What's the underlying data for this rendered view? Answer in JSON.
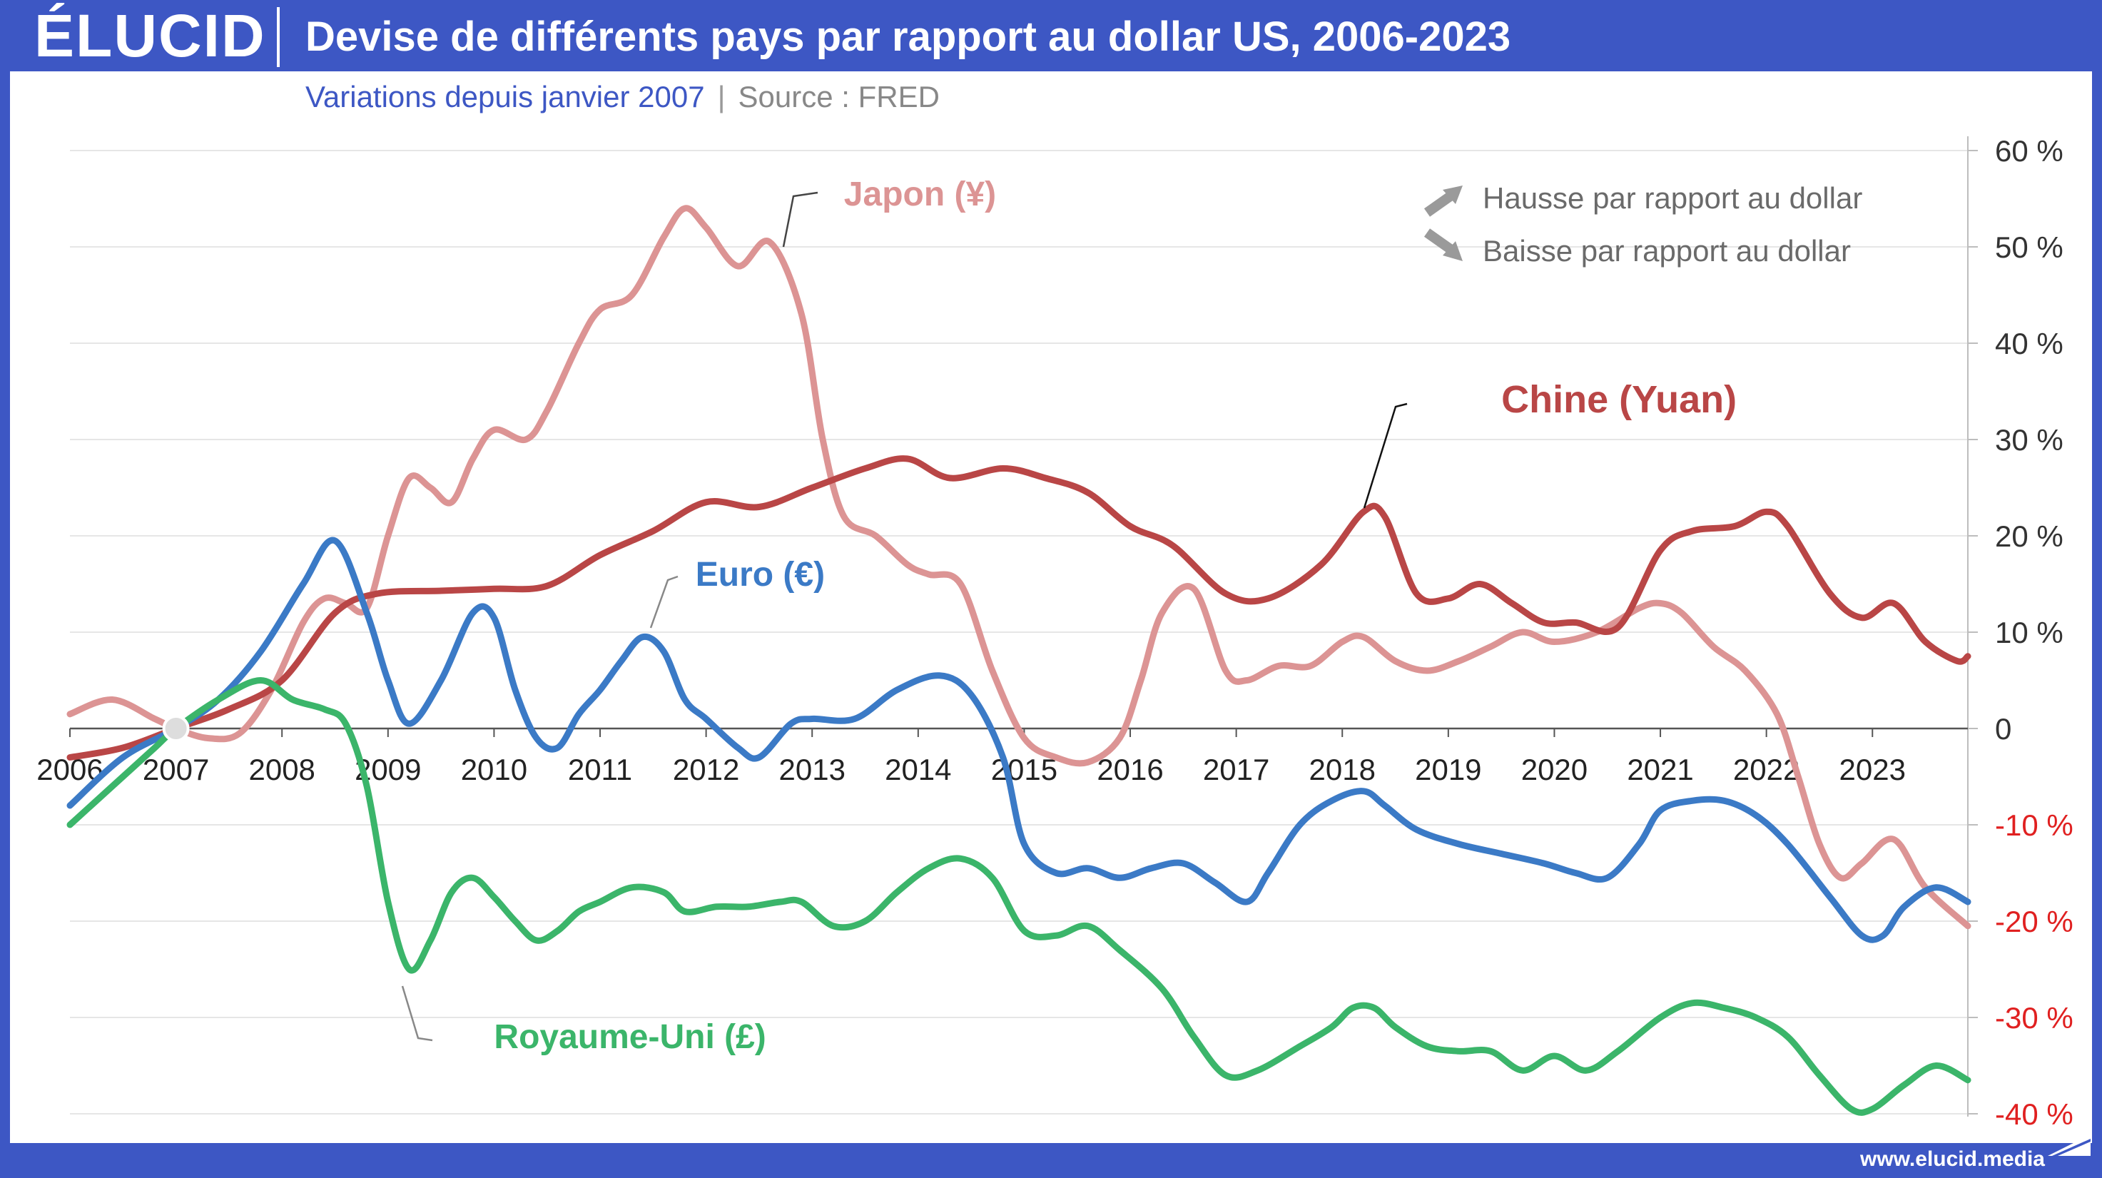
{
  "brand": {
    "logo": "ÉLUCID",
    "url": "www.elucid.media"
  },
  "header": {
    "title": "Devise de différents pays par rapport au dollar US, 2006-2023"
  },
  "subtitle": {
    "main": "Variations depuis janvier 2007",
    "separator": "|",
    "source": "Source : FRED"
  },
  "legend": {
    "up": "Hausse par rapport au dollar",
    "down": "Baisse par rapport au dollar"
  },
  "colors": {
    "brand": "#3d57c4",
    "japon": "#dc9494",
    "chine": "#b94646",
    "euro": "#3b7ac6",
    "uk": "#3bb56a",
    "negative_tick": "#e02020"
  },
  "chart_data": {
    "type": "line",
    "title": "Devise de différents pays par rapport au dollar US, 2006-2023",
    "xlabel": "",
    "ylabel": "",
    "x_ticks": [
      "2006",
      "2007",
      "2008",
      "2009",
      "2010",
      "2011",
      "2012",
      "2013",
      "2014",
      "2015",
      "2016",
      "2017",
      "2018",
      "2019",
      "2020",
      "2021",
      "2022",
      "2023"
    ],
    "y_ticks": [
      60,
      50,
      40,
      30,
      20,
      10,
      0,
      -10,
      -20,
      -30,
      -40
    ],
    "y_tick_labels": [
      "60 %",
      "50 %",
      "40 %",
      "30 %",
      "20 %",
      "10 %",
      "0",
      "-10 %",
      "-20 %",
      "-30 %",
      "-40 %"
    ],
    "xlim": [
      2006,
      2023.9
    ],
    "ylim": [
      -40,
      60
    ],
    "origin_marker": {
      "x": 2007,
      "y": 0
    },
    "series": [
      {
        "name": "Japon (¥)",
        "color": "#dc9494",
        "label_x": 2013.3,
        "label_y": 55.5,
        "points": [
          [
            2006,
            1.5
          ],
          [
            2006.4,
            3
          ],
          [
            2006.8,
            1
          ],
          [
            2007,
            0
          ],
          [
            2007.3,
            -1
          ],
          [
            2007.6,
            -0.5
          ],
          [
            2007.9,
            4
          ],
          [
            2008.2,
            11
          ],
          [
            2008.4,
            13.5
          ],
          [
            2008.6,
            13
          ],
          [
            2008.8,
            12.5
          ],
          [
            2009,
            20
          ],
          [
            2009.2,
            26
          ],
          [
            2009.4,
            25
          ],
          [
            2009.6,
            23.5
          ],
          [
            2009.8,
            28
          ],
          [
            2010,
            31
          ],
          [
            2010.3,
            30
          ],
          [
            2010.5,
            33
          ],
          [
            2010.8,
            40
          ],
          [
            2011,
            43.5
          ],
          [
            2011.3,
            45
          ],
          [
            2011.6,
            51
          ],
          [
            2011.8,
            54
          ],
          [
            2012,
            52
          ],
          [
            2012.3,
            48
          ],
          [
            2012.6,
            50.5
          ],
          [
            2012.9,
            43
          ],
          [
            2013.1,
            30
          ],
          [
            2013.3,
            22
          ],
          [
            2013.6,
            20
          ],
          [
            2013.9,
            17
          ],
          [
            2014.1,
            16
          ],
          [
            2014.4,
            15
          ],
          [
            2014.7,
            6
          ],
          [
            2015,
            -1
          ],
          [
            2015.3,
            -3
          ],
          [
            2015.6,
            -3.5
          ],
          [
            2015.9,
            -1
          ],
          [
            2016.1,
            5
          ],
          [
            2016.3,
            12
          ],
          [
            2016.6,
            14.5
          ],
          [
            2016.9,
            6
          ],
          [
            2017.1,
            5
          ],
          [
            2017.4,
            6.5
          ],
          [
            2017.7,
            6.5
          ],
          [
            2018,
            9
          ],
          [
            2018.2,
            9.5
          ],
          [
            2018.5,
            7
          ],
          [
            2018.8,
            6
          ],
          [
            2019.1,
            7
          ],
          [
            2019.4,
            8.5
          ],
          [
            2019.7,
            10
          ],
          [
            2020,
            9
          ],
          [
            2020.4,
            10
          ],
          [
            2020.8,
            12.5
          ],
          [
            2021,
            13
          ],
          [
            2021.2,
            12
          ],
          [
            2021.5,
            8.5
          ],
          [
            2021.8,
            6
          ],
          [
            2022.1,
            1.5
          ],
          [
            2022.3,
            -5
          ],
          [
            2022.5,
            -12
          ],
          [
            2022.7,
            -15.5
          ],
          [
            2022.9,
            -14
          ],
          [
            2023.2,
            -11.5
          ],
          [
            2023.5,
            -16.5
          ],
          [
            2023.9,
            -20.5
          ]
        ]
      },
      {
        "name": "Chine (Yuan)",
        "color": "#b94646",
        "label_x": 2019.5,
        "label_y": 34,
        "points": [
          [
            2006,
            -3
          ],
          [
            2006.5,
            -2
          ],
          [
            2007,
            0
          ],
          [
            2007.5,
            2
          ],
          [
            2008,
            5
          ],
          [
            2008.5,
            12
          ],
          [
            2008.9,
            14
          ],
          [
            2009.5,
            14.3
          ],
          [
            2010,
            14.5
          ],
          [
            2010.5,
            14.8
          ],
          [
            2011,
            18
          ],
          [
            2011.5,
            20.5
          ],
          [
            2012,
            23.5
          ],
          [
            2012.5,
            23
          ],
          [
            2013,
            25
          ],
          [
            2013.5,
            27
          ],
          [
            2013.9,
            28
          ],
          [
            2014.3,
            26
          ],
          [
            2014.8,
            27
          ],
          [
            2015.2,
            26
          ],
          [
            2015.6,
            24.5
          ],
          [
            2016,
            21
          ],
          [
            2016.4,
            19
          ],
          [
            2016.9,
            14
          ],
          [
            2017.3,
            13.5
          ],
          [
            2017.8,
            17
          ],
          [
            2018.2,
            22.5
          ],
          [
            2018.4,
            22
          ],
          [
            2018.7,
            14
          ],
          [
            2019,
            13.5
          ],
          [
            2019.3,
            15
          ],
          [
            2019.6,
            13
          ],
          [
            2019.9,
            11
          ],
          [
            2020.2,
            11
          ],
          [
            2020.6,
            10.5
          ],
          [
            2021,
            18.5
          ],
          [
            2021.3,
            20.5
          ],
          [
            2021.7,
            21
          ],
          [
            2022,
            22.5
          ],
          [
            2022.2,
            21
          ],
          [
            2022.6,
            14
          ],
          [
            2022.9,
            11.5
          ],
          [
            2023.2,
            13
          ],
          [
            2023.5,
            9
          ],
          [
            2023.8,
            7
          ],
          [
            2023.9,
            7.5
          ]
        ]
      },
      {
        "name": "Euro (€)",
        "color": "#3b7ac6",
        "label_x": 2011.9,
        "label_y": 16,
        "points": [
          [
            2006,
            -8
          ],
          [
            2006.5,
            -3
          ],
          [
            2007,
            0
          ],
          [
            2007.4,
            3
          ],
          [
            2007.8,
            8
          ],
          [
            2008.2,
            15
          ],
          [
            2008.5,
            19.5
          ],
          [
            2008.8,
            12
          ],
          [
            2009,
            5
          ],
          [
            2009.2,
            0.5
          ],
          [
            2009.5,
            5
          ],
          [
            2009.8,
            12
          ],
          [
            2010,
            11.5
          ],
          [
            2010.2,
            4
          ],
          [
            2010.4,
            -1
          ],
          [
            2010.6,
            -2
          ],
          [
            2010.8,
            1.5
          ],
          [
            2011,
            4
          ],
          [
            2011.2,
            7
          ],
          [
            2011.4,
            9.5
          ],
          [
            2011.6,
            8
          ],
          [
            2011.8,
            3
          ],
          [
            2012,
            1
          ],
          [
            2012.3,
            -2
          ],
          [
            2012.5,
            -3
          ],
          [
            2012.8,
            0.5
          ],
          [
            2013,
            1
          ],
          [
            2013.4,
            1
          ],
          [
            2013.8,
            4
          ],
          [
            2014.2,
            5.5
          ],
          [
            2014.5,
            3.5
          ],
          [
            2014.8,
            -3
          ],
          [
            2015,
            -12
          ],
          [
            2015.3,
            -15
          ],
          [
            2015.6,
            -14.5
          ],
          [
            2015.9,
            -15.5
          ],
          [
            2016.2,
            -14.5
          ],
          [
            2016.5,
            -14
          ],
          [
            2016.8,
            -16
          ],
          [
            2017.1,
            -18
          ],
          [
            2017.3,
            -15
          ],
          [
            2017.6,
            -10
          ],
          [
            2017.9,
            -7.5
          ],
          [
            2018.2,
            -6.5
          ],
          [
            2018.4,
            -8
          ],
          [
            2018.7,
            -10.5
          ],
          [
            2019.1,
            -12
          ],
          [
            2019.5,
            -13
          ],
          [
            2019.9,
            -14
          ],
          [
            2020.2,
            -15
          ],
          [
            2020.5,
            -15.5
          ],
          [
            2020.8,
            -12
          ],
          [
            2021,
            -8.5
          ],
          [
            2021.3,
            -7.5
          ],
          [
            2021.6,
            -7.5
          ],
          [
            2021.9,
            -9
          ],
          [
            2022.2,
            -12
          ],
          [
            2022.6,
            -17.5
          ],
          [
            2022.9,
            -21.5
          ],
          [
            2023.1,
            -21.5
          ],
          [
            2023.3,
            -18.5
          ],
          [
            2023.6,
            -16.5
          ],
          [
            2023.9,
            -18
          ]
        ]
      },
      {
        "name": "Royaume-Uni (£)",
        "color": "#3bb56a",
        "label_x": 2010,
        "label_y": -32,
        "points": [
          [
            2006,
            -10
          ],
          [
            2006.4,
            -6
          ],
          [
            2006.8,
            -2
          ],
          [
            2007,
            0
          ],
          [
            2007.4,
            3
          ],
          [
            2007.8,
            5
          ],
          [
            2008.1,
            3
          ],
          [
            2008.4,
            2
          ],
          [
            2008.6,
            0.5
          ],
          [
            2008.8,
            -6
          ],
          [
            2009,
            -18
          ],
          [
            2009.2,
            -25
          ],
          [
            2009.4,
            -22
          ],
          [
            2009.6,
            -17
          ],
          [
            2009.8,
            -15.5
          ],
          [
            2010,
            -17.5
          ],
          [
            2010.2,
            -20
          ],
          [
            2010.4,
            -22
          ],
          [
            2010.6,
            -21
          ],
          [
            2010.8,
            -19
          ],
          [
            2011,
            -18
          ],
          [
            2011.3,
            -16.5
          ],
          [
            2011.6,
            -17
          ],
          [
            2011.8,
            -19
          ],
          [
            2012.1,
            -18.5
          ],
          [
            2012.4,
            -18.5
          ],
          [
            2012.7,
            -18
          ],
          [
            2012.9,
            -18
          ],
          [
            2013.2,
            -20.5
          ],
          [
            2013.5,
            -20
          ],
          [
            2013.8,
            -17
          ],
          [
            2014.1,
            -14.5
          ],
          [
            2014.4,
            -13.5
          ],
          [
            2014.7,
            -15.5
          ],
          [
            2015,
            -21
          ],
          [
            2015.3,
            -21.5
          ],
          [
            2015.6,
            -20.5
          ],
          [
            2015.9,
            -23
          ],
          [
            2016.3,
            -27
          ],
          [
            2016.6,
            -32
          ],
          [
            2016.9,
            -36
          ],
          [
            2017.2,
            -35.5
          ],
          [
            2017.6,
            -33
          ],
          [
            2017.9,
            -31
          ],
          [
            2018.1,
            -29
          ],
          [
            2018.3,
            -29
          ],
          [
            2018.5,
            -31
          ],
          [
            2018.8,
            -33
          ],
          [
            2019.1,
            -33.5
          ],
          [
            2019.4,
            -33.5
          ],
          [
            2019.7,
            -35.5
          ],
          [
            2020,
            -34
          ],
          [
            2020.3,
            -35.5
          ],
          [
            2020.6,
            -33.5
          ],
          [
            2021,
            -30
          ],
          [
            2021.3,
            -28.5
          ],
          [
            2021.6,
            -29
          ],
          [
            2021.9,
            -30
          ],
          [
            2022.2,
            -32
          ],
          [
            2022.5,
            -36
          ],
          [
            2022.8,
            -39.5
          ],
          [
            2023,
            -39.5
          ],
          [
            2023.3,
            -37
          ],
          [
            2023.6,
            -35
          ],
          [
            2023.9,
            -36.5
          ]
        ]
      }
    ]
  }
}
